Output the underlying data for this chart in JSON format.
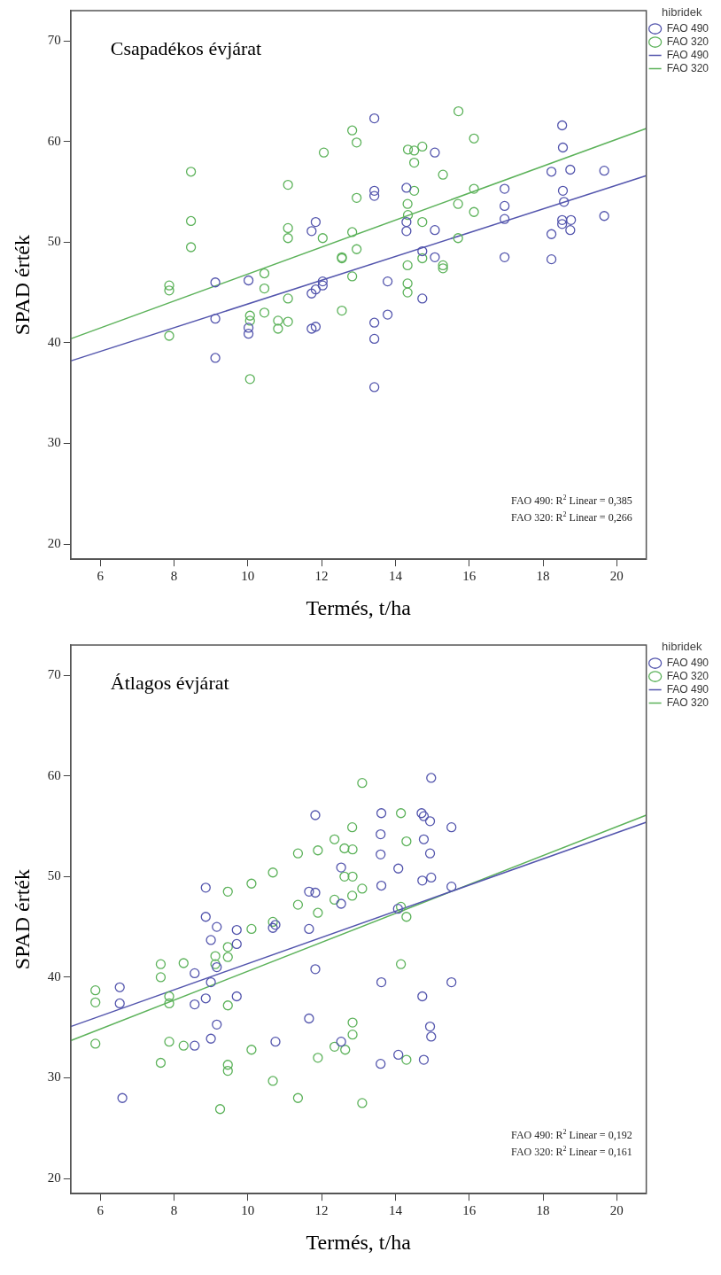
{
  "chart_data": [
    {
      "type": "scatter",
      "title": "Csapadékos évjárat",
      "xlabel": "Termés, t/ha",
      "ylabel": "SPAD érték",
      "legend_title": "hibridek",
      "legend": "top right",
      "marker": "circle",
      "grid": false,
      "xlim": [
        5.2,
        20.8
      ],
      "ylim": [
        18.5,
        73
      ],
      "xticks": [
        6,
        8,
        10,
        12,
        14,
        16,
        18,
        20
      ],
      "yticks": [
        20,
        30,
        40,
        50,
        60,
        70
      ],
      "annotations": [
        "FAO 490: R$^{2}$ Linear = 0,385",
        "FAO 320: R$^{2}$ Linear = 0,266"
      ],
      "series": [
        {
          "name": "FAO 490",
          "color": "#5355ad",
          "x": [
            11.84,
            11.73,
            9.12,
            10.02,
            12.03,
            12.03,
            11.84,
            11.73,
            9.12,
            10.02,
            10.02,
            11.73,
            11.84,
            9.12,
            13.43,
            15.07,
            18.52,
            18.54,
            18.23,
            18.74,
            19.66,
            13.43,
            13.43,
            14.3,
            16.96,
            16.96,
            18.54,
            18.57,
            16.96,
            18.52,
            18.76,
            18.52,
            18.74,
            19.66,
            18.23,
            14.3,
            14.3,
            15.07,
            14.73,
            15.07,
            16.96,
            18.23,
            13.79,
            14.73,
            13.79,
            13.43,
            13.43,
            13.43
          ],
          "values": [
            52.0,
            51.1,
            46.0,
            46.2,
            46.1,
            45.7,
            45.3,
            44.9,
            42.4,
            41.5,
            40.9,
            41.4,
            41.6,
            38.5,
            62.3,
            58.9,
            61.6,
            59.4,
            57.0,
            57.2,
            57.1,
            55.1,
            54.6,
            55.4,
            55.3,
            53.6,
            55.1,
            54.0,
            52.3,
            52.2,
            52.2,
            51.8,
            51.2,
            52.6,
            50.8,
            52.0,
            51.1,
            51.2,
            49.1,
            48.5,
            48.5,
            48.3,
            46.1,
            44.4,
            42.8,
            42.0,
            40.4,
            35.6
          ]
        },
        {
          "name": "FAO 320",
          "color": "#5cb25a",
          "x": [
            12.83,
            12.95,
            12.06,
            8.46,
            11.09,
            12.95,
            8.46,
            11.09,
            11.09,
            12.03,
            12.83,
            12.95,
            8.46,
            12.55,
            12.55,
            12.83,
            10.45,
            10.45,
            11.09,
            7.87,
            7.87,
            10.06,
            10.06,
            10.45,
            10.82,
            10.82,
            11.09,
            12.55,
            7.87,
            10.06,
            15.71,
            16.13,
            14.34,
            14.51,
            14.73,
            14.51,
            15.29,
            14.51,
            16.13,
            14.33,
            15.7,
            14.34,
            16.13,
            14.73,
            15.7,
            14.33,
            14.73,
            15.29,
            15.29,
            14.33,
            14.33
          ],
          "values": [
            61.1,
            59.9,
            58.9,
            57.0,
            55.7,
            54.4,
            52.1,
            51.4,
            50.4,
            50.4,
            51.0,
            49.3,
            49.5,
            48.4,
            48.5,
            46.6,
            46.9,
            45.4,
            44.4,
            45.7,
            45.2,
            42.7,
            42.2,
            43.0,
            42.2,
            41.4,
            42.1,
            43.2,
            40.7,
            36.4,
            63.0,
            60.3,
            59.2,
            59.1,
            59.5,
            57.9,
            56.7,
            55.1,
            55.3,
            53.8,
            53.8,
            52.7,
            53.0,
            52.0,
            50.4,
            47.7,
            48.4,
            47.7,
            47.4,
            45.9,
            45.0
          ]
        },
        {
          "name": "FAO 490",
          "type": "line",
          "marker": "none",
          "color": "#5355ad",
          "x": [
            5.2,
            20.8
          ],
          "values": [
            38.2,
            56.6
          ]
        },
        {
          "name": "FAO 320",
          "type": "line",
          "marker": "none",
          "color": "#5cb25a",
          "x": [
            5.2,
            20.8
          ],
          "values": [
            40.4,
            61.3
          ]
        }
      ]
    },
    {
      "type": "scatter",
      "title": "Átlagos évjárat",
      "xlabel": "Termés, t/ha",
      "ylabel": "SPAD érték",
      "legend_title": "hibridek",
      "legend": "top right",
      "marker": "circle",
      "grid": false,
      "xlim": [
        5.2,
        20.8
      ],
      "ylim": [
        18.5,
        73
      ],
      "xticks": [
        6,
        8,
        10,
        12,
        14,
        16,
        18,
        20
      ],
      "yticks": [
        20,
        30,
        40,
        50,
        60,
        70
      ],
      "annotations": [
        "FAO 490: R$^{2}$ Linear = 0,192",
        "FAO 320: R$^{2}$ Linear = 0,161"
      ],
      "series": [
        {
          "name": "FAO 490",
          "color": "#5355ad",
          "x": [
            11.83,
            12.53,
            8.86,
            11.66,
            11.83,
            12.53,
            8.86,
            9.16,
            9.7,
            10.68,
            10.75,
            11.66,
            9.0,
            9.7,
            9.16,
            8.56,
            9.0,
            11.83,
            6.53,
            6.53,
            8.56,
            8.86,
            9.7,
            9.16,
            9.0,
            8.56,
            10.75,
            11.66,
            12.53,
            6.6,
            14.97,
            13.62,
            14.71,
            14.77,
            14.94,
            15.52,
            13.6,
            14.77,
            13.6,
            14.94,
            14.08,
            13.62,
            14.73,
            14.97,
            15.52,
            14.07,
            13.62,
            15.52,
            14.73,
            14.94,
            14.97,
            14.08,
            13.6,
            14.77
          ],
          "values": [
            56.1,
            50.9,
            48.9,
            48.5,
            48.4,
            47.3,
            46.0,
            45.0,
            44.7,
            44.9,
            45.2,
            44.8,
            43.7,
            43.3,
            41.0,
            40.4,
            39.5,
            40.8,
            39.0,
            37.4,
            37.3,
            37.9,
            38.1,
            35.3,
            33.9,
            33.2,
            33.6,
            35.9,
            33.6,
            28.0,
            59.8,
            56.3,
            56.3,
            56.0,
            55.5,
            54.9,
            54.2,
            53.7,
            52.2,
            52.3,
            50.8,
            49.1,
            49.6,
            49.9,
            49.0,
            46.8,
            39.5,
            39.5,
            38.1,
            35.1,
            34.1,
            32.3,
            31.4,
            31.8
          ]
        },
        {
          "name": "FAO 320",
          "color": "#5cb25a",
          "x": [
            13.1,
            12.83,
            12.35,
            12.62,
            12.84,
            11.9,
            11.36,
            10.68,
            10.1,
            9.46,
            12.62,
            12.84,
            13.1,
            12.35,
            12.83,
            11.36,
            11.9,
            10.68,
            10.1,
            9.46,
            9.12,
            9.46,
            8.26,
            7.64,
            7.64,
            9.12,
            7.87,
            7.87,
            5.87,
            5.87,
            9.46,
            5.87,
            7.87,
            8.26,
            7.64,
            9.46,
            9.46,
            10.1,
            10.68,
            11.36,
            11.9,
            12.35,
            12.64,
            12.84,
            12.84,
            13.1,
            9.25,
            14.15,
            14.3,
            14.15,
            14.3,
            14.15,
            14.3
          ],
          "values": [
            59.3,
            54.9,
            53.7,
            52.8,
            52.7,
            52.6,
            52.3,
            50.4,
            49.3,
            48.5,
            50.0,
            50.0,
            48.8,
            47.7,
            48.1,
            47.2,
            46.4,
            45.5,
            44.8,
            43.0,
            42.1,
            42.0,
            41.4,
            41.3,
            40.0,
            41.3,
            38.1,
            37.4,
            38.7,
            37.5,
            37.2,
            33.4,
            33.6,
            33.2,
            31.5,
            31.3,
            30.7,
            32.8,
            29.7,
            28.0,
            32.0,
            33.1,
            32.8,
            35.5,
            34.3,
            27.5,
            26.9,
            56.3,
            53.5,
            47.0,
            46.0,
            41.3,
            31.8
          ]
        },
        {
          "name": "FAO 490",
          "type": "line",
          "marker": "none",
          "color": "#5355ad",
          "x": [
            5.2,
            20.8
          ],
          "values": [
            35.1,
            55.4
          ]
        },
        {
          "name": "FAO 320",
          "type": "line",
          "marker": "none",
          "color": "#5cb25a",
          "x": [
            5.2,
            20.8
          ],
          "values": [
            33.7,
            56.1
          ]
        }
      ]
    }
  ]
}
